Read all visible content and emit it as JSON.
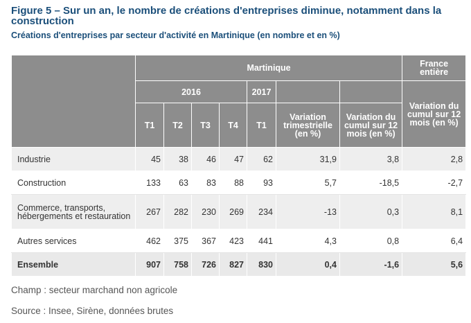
{
  "figure": {
    "title": "Figure 5 – Sur un an, le nombre de créations d'entreprises diminue, notamment dans la construction",
    "subtitle": "Créations d'entreprises par secteur d'activité en Martinique (en nombre et en %)"
  },
  "table": {
    "header": {
      "martinique": "Martinique",
      "france": "France entière",
      "year_2016": "2016",
      "year_2017": "2017",
      "t1_2016": "T1",
      "t2_2016": "T2",
      "t3_2016": "T3",
      "t4_2016": "T4",
      "t1_2017": "T1",
      "var_trim": "Variation trimestrielle (en %)",
      "var_cumul": "Variation du cumul sur 12 mois (en %)",
      "var_cumul_france": "Variation du cumul sur 12 mois (en %)"
    },
    "rows": [
      {
        "label": "Industrie",
        "t1_2016": "45",
        "t2_2016": "38",
        "t3_2016": "46",
        "t4_2016": "47",
        "t1_2017": "62",
        "var_trim": "31,9",
        "var_cumul": "3,8",
        "var_france": "2,8"
      },
      {
        "label": "Construction",
        "t1_2016": "133",
        "t2_2016": "63",
        "t3_2016": "83",
        "t4_2016": "88",
        "t1_2017": "93",
        "var_trim": "5,7",
        "var_cumul": "-18,5",
        "var_france": "-2,7"
      },
      {
        "label": "Commerce, transports, hébergements et restauration",
        "t1_2016": "267",
        "t2_2016": "282",
        "t3_2016": "230",
        "t4_2016": "269",
        "t1_2017": "234",
        "var_trim": "-13",
        "var_cumul": "0,3",
        "var_france": "8,1"
      },
      {
        "label": "Autres services",
        "t1_2016": "462",
        "t2_2016": "375",
        "t3_2016": "367",
        "t4_2016": "423",
        "t1_2017": "441",
        "var_trim": "4,3",
        "var_cumul": "0,8",
        "var_france": "6,4"
      },
      {
        "label": "Ensemble",
        "t1_2016": "907",
        "t2_2016": "758",
        "t3_2016": "726",
        "t4_2016": "827",
        "t1_2017": "830",
        "var_trim": "0,4",
        "var_cumul": "-1,6",
        "var_france": "5,6"
      }
    ]
  },
  "notes": {
    "champ": "Champ : secteur marchand non agricole",
    "source": "Source : Insee, Sirène, données brutes"
  }
}
